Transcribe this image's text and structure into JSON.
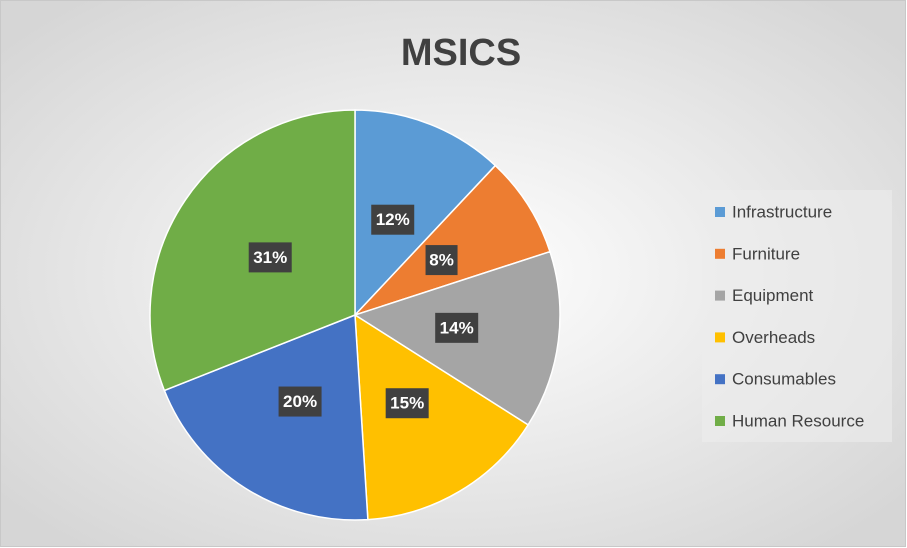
{
  "chart_data": {
    "type": "pie",
    "title": "MSICS",
    "categories": [
      "Infrastructure",
      "Furniture",
      "Equipment",
      "Overheads",
      "Consumables",
      "Human Resource"
    ],
    "values": [
      12,
      8,
      14,
      15,
      20,
      31
    ],
    "value_labels": [
      "12%",
      "8%",
      "14%",
      "15%",
      "20%",
      "31%"
    ],
    "colors": [
      "#5b9bd5",
      "#ed7d31",
      "#a5a5a5",
      "#ffc000",
      "#4472c4",
      "#70ad47"
    ],
    "legend": "right"
  }
}
